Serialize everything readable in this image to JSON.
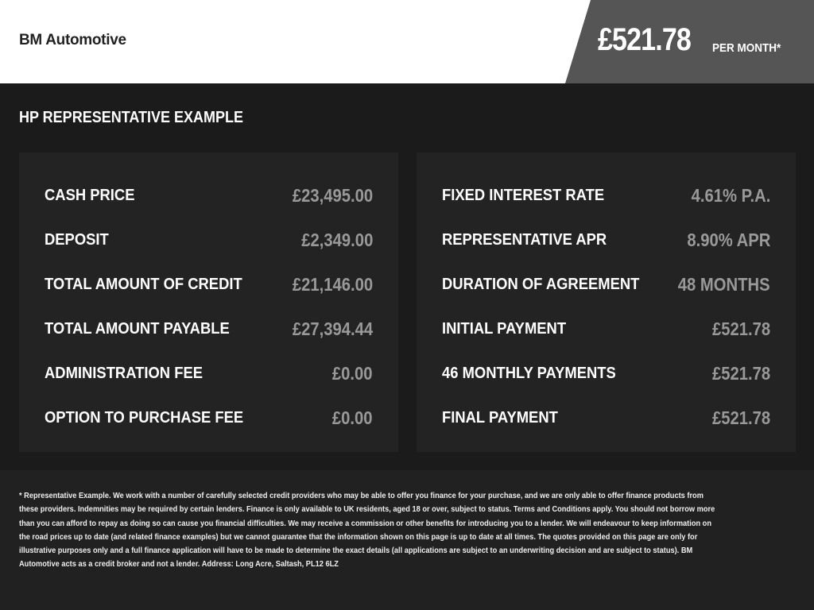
{
  "header": {
    "brand": "BM Automotive",
    "price": "£521.78",
    "per_month": "PER MONTH*"
  },
  "section_title": "HP REPRESENTATIVE EXAMPLE",
  "left": [
    {
      "label": "CASH PRICE",
      "value": "£23,495.00"
    },
    {
      "label": "DEPOSIT",
      "value": "£2,349.00"
    },
    {
      "label": "TOTAL AMOUNT OF CREDIT",
      "value": "£21,146.00"
    },
    {
      "label": "TOTAL AMOUNT PAYABLE",
      "value": "£27,394.44"
    },
    {
      "label": "ADMINISTRATION FEE",
      "value": "£0.00"
    },
    {
      "label": "OPTION TO PURCHASE FEE",
      "value": "£0.00"
    }
  ],
  "right": [
    {
      "label": "FIXED INTEREST RATE",
      "value": "4.61% P.A."
    },
    {
      "label": "REPRESENTATIVE APR",
      "value": "8.90% APR"
    },
    {
      "label": "DURATION OF AGREEMENT",
      "value": "48 MONTHS"
    },
    {
      "label": "INITIAL PAYMENT",
      "value": "£521.78"
    },
    {
      "label": "46 MONTHLY PAYMENTS",
      "value": "£521.78"
    },
    {
      "label": "FINAL PAYMENT",
      "value": "£521.78"
    }
  ],
  "disclaimer": "* Representative Example. We work with a number of carefully selected credit providers who may be able to offer you finance for your purchase, and we are only able to offer finance products from these providers. Indemnities may be required by certain lenders. Finance is only available to UK residents, aged 18 or over, subject to status. Terms and Conditions apply. You should not borrow more than you can afford to repay as doing so can cause you financial difficulties. We may receive a commission or other benefits for introducing you to a lender. We will endeavour to keep information on the road prices up to date (and related finance examples) but we cannot guarantee that the information shown on this page is up to date at all times. The quotes provided on this page are only for illustrative purposes only and a full finance application will have to be made to determine the exact details (all applications are subject to an underwriting decision and are subject to status). BM Automotive acts as a credit broker and not a lender. Address: Long Acre, Saltash, PL12 6LZ"
}
